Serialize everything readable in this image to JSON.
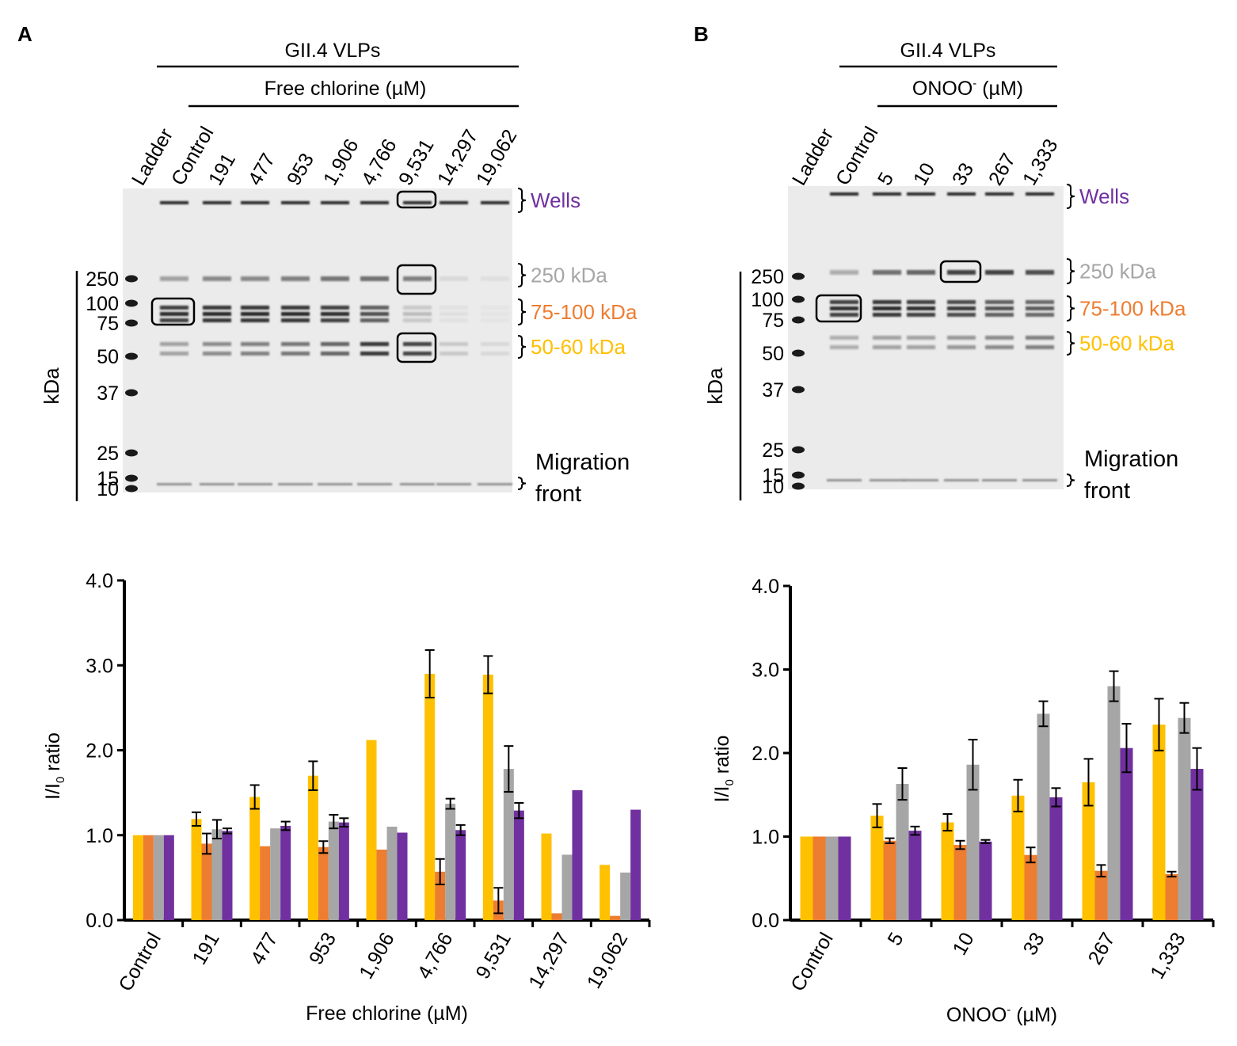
{
  "colors": {
    "wells": "#7030A0",
    "kda250": "#A6A6A6",
    "kda75_100": "#ED7D31",
    "kda50_60": "#FFC000",
    "gel_bg": "#EBEBEB",
    "band": "#1A1A1A"
  },
  "panels": {
    "A": {
      "letter": "A",
      "header_top": "GII.4 VLPs",
      "header_treatment": "Free chlorine (µM)",
      "lane_labels": [
        "Ladder",
        "Control",
        "191",
        "477",
        "953",
        "1,906",
        "4,766",
        "9,531",
        "14,297",
        "19,062"
      ],
      "band_labels": {
        "wells": "Wells",
        "kda250": "250 kDa",
        "kda75_100": "75-100 kDa",
        "kda50_60": "50-60 kDa",
        "migration_front": [
          "Migration",
          "front"
        ]
      },
      "ladder_axis_label": "kDa",
      "ladder_marks": [
        "250",
        "100",
        "75",
        "50",
        "37",
        "25",
        "15",
        "10"
      ]
    },
    "B": {
      "letter": "B",
      "header_top": "GII.4 VLPs",
      "header_treatment_main": "ONOO",
      "header_treatment_sup": "-",
      "header_treatment_rest": " (µM)",
      "lane_labels": [
        "Ladder",
        "Control",
        "5",
        "10",
        "33",
        "267",
        "1,333"
      ],
      "band_labels": {
        "wells": "Wells",
        "kda250": "250 kDa",
        "kda75_100": "75-100 kDa",
        "kda50_60": "50-60 kDa",
        "migration_front": [
          "Migration",
          "front"
        ]
      },
      "ladder_axis_label": "kDa",
      "ladder_marks": [
        "250",
        "100",
        "75",
        "50",
        "37",
        "25",
        "15",
        "10"
      ]
    }
  },
  "chart_data": [
    {
      "type": "bar",
      "panel": "A",
      "ylabel_main": "I/I",
      "ylabel_sub": "0",
      "ylabel_rest": " ratio",
      "xlabel": "Free chlorine (µM)",
      "ylim": [
        0,
        4
      ],
      "yticks": [
        "0.0",
        "1.0",
        "2.0",
        "3.0",
        "4.0"
      ],
      "categories": [
        "Control",
        "191",
        "477",
        "953",
        "1,906",
        "4,766",
        "9,531",
        "14,297",
        "19,062"
      ],
      "series": [
        {
          "name": "50-60 kDa",
          "color": "#FFC000",
          "values": [
            1.0,
            1.19,
            1.45,
            1.7,
            2.12,
            2.9,
            2.89,
            1.02,
            0.65
          ],
          "errors": [
            0,
            0.08,
            0.14,
            0.17,
            0,
            0.28,
            0.22,
            0,
            0
          ]
        },
        {
          "name": "75-100 kDa",
          "color": "#ED7D31",
          "values": [
            1.0,
            0.9,
            0.87,
            0.86,
            0.83,
            0.57,
            0.23,
            0.08,
            0.05
          ],
          "errors": [
            0,
            0.12,
            0,
            0.07,
            0,
            0.15,
            0.15,
            0,
            0
          ]
        },
        {
          "name": "250 kDa",
          "color": "#A6A6A6",
          "values": [
            1.0,
            1.07,
            1.08,
            1.16,
            1.1,
            1.37,
            1.78,
            0.77,
            0.56
          ],
          "errors": [
            0,
            0.11,
            0,
            0.08,
            0,
            0.06,
            0.27,
            0,
            0
          ]
        },
        {
          "name": "Wells",
          "color": "#7030A0",
          "values": [
            1.0,
            1.05,
            1.11,
            1.15,
            1.03,
            1.06,
            1.29,
            1.53,
            1.3
          ],
          "errors": [
            0,
            0.03,
            0.05,
            0.05,
            0,
            0.06,
            0.09,
            0,
            0
          ]
        }
      ]
    },
    {
      "type": "bar",
      "panel": "B",
      "ylabel_main": "I/I",
      "ylabel_sub": "0",
      "ylabel_rest": " ratio",
      "xlabel_main": "ONOO",
      "xlabel_sup": "-",
      "xlabel_rest": " (µM)",
      "ylim": [
        0,
        4
      ],
      "yticks": [
        "0.0",
        "1.0",
        "2.0",
        "3.0",
        "4.0"
      ],
      "categories": [
        "Control",
        "5",
        "10",
        "33",
        "267",
        "1,333"
      ],
      "series": [
        {
          "name": "50-60 kDa",
          "color": "#FFC000",
          "values": [
            1.0,
            1.25,
            1.17,
            1.49,
            1.65,
            2.34
          ],
          "errors": [
            0,
            0.14,
            0.1,
            0.19,
            0.28,
            0.31
          ]
        },
        {
          "name": "75-100 kDa",
          "color": "#ED7D31",
          "values": [
            1.0,
            0.95,
            0.9,
            0.78,
            0.59,
            0.55
          ],
          "errors": [
            0,
            0.03,
            0.05,
            0.09,
            0.07,
            0.03
          ]
        },
        {
          "name": "250 kDa",
          "color": "#A6A6A6",
          "values": [
            1.0,
            1.63,
            1.86,
            2.47,
            2.8,
            2.42
          ],
          "errors": [
            0,
            0.19,
            0.3,
            0.15,
            0.18,
            0.18
          ]
        },
        {
          "name": "Wells",
          "color": "#7030A0",
          "values": [
            1.0,
            1.07,
            0.94,
            1.47,
            2.06,
            1.81
          ],
          "errors": [
            0,
            0.05,
            0.02,
            0.11,
            0.29,
            0.25
          ]
        }
      ]
    }
  ]
}
